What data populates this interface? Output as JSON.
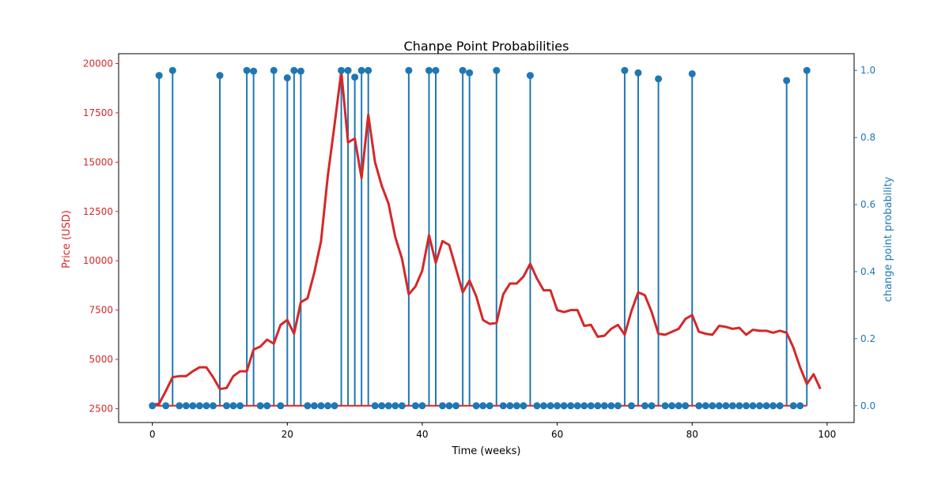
{
  "chart_data": {
    "type": "line",
    "title": "Chanpe Point Probabilities",
    "xlabel": "Time (weeks)",
    "ylabel_left": "Price (USD)",
    "ylabel_right": "change point probability",
    "xlim": [
      -5,
      104
    ],
    "ylim_left": [
      1800,
      20500
    ],
    "ylim_right": [
      -0.05,
      1.05
    ],
    "x_ticks": [
      0,
      20,
      40,
      60,
      80,
      100
    ],
    "y_ticks_left": [
      2500,
      5000,
      7500,
      10000,
      12500,
      15000,
      17500,
      20000
    ],
    "y_ticks_right": [
      0.0,
      0.2,
      0.4,
      0.6,
      0.8,
      1.0
    ],
    "y_tick_decimals_right": 1,
    "grid": false,
    "colors": {
      "price": "#d62728",
      "probability": "#1f77b4",
      "axes": "#000000"
    },
    "series": [
      {
        "name": "",
        "kind": "line",
        "axis": "left",
        "x": [
          0,
          1,
          2,
          3,
          4,
          5,
          6,
          7,
          8,
          9,
          10,
          11,
          12,
          13,
          14,
          15,
          16,
          17,
          18,
          19,
          20,
          21,
          22,
          23,
          24,
          25,
          26,
          27,
          28,
          29,
          30,
          31,
          32,
          33,
          34,
          35,
          36,
          37,
          38,
          39,
          40,
          41,
          42,
          43,
          44,
          45,
          46,
          47,
          48,
          49,
          50,
          51,
          52,
          53,
          54,
          55,
          56,
          57,
          58,
          59,
          60,
          61,
          62,
          63,
          64,
          65,
          66,
          67,
          68,
          69,
          70,
          71,
          72,
          73,
          74,
          75,
          76,
          77,
          78,
          79,
          80,
          81,
          82,
          83,
          84,
          85,
          86,
          87,
          88,
          89,
          90,
          91,
          92,
          93,
          94,
          95,
          96,
          97,
          98,
          99
        ],
        "y": [
          2700,
          2750,
          3400,
          4100,
          4150,
          4150,
          4400,
          4600,
          4600,
          4100,
          3500,
          3550,
          4150,
          4400,
          4400,
          5500,
          5650,
          6000,
          5800,
          6750,
          7000,
          6300,
          7900,
          8100,
          9400,
          11000,
          14300,
          16900,
          19600,
          16000,
          16200,
          14200,
          17400,
          15000,
          13800,
          12900,
          11200,
          10100,
          8300,
          8700,
          9500,
          11300,
          9900,
          11000,
          10800,
          9600,
          8400,
          9000,
          8200,
          7000,
          6800,
          6850,
          8300,
          8850,
          8850,
          9200,
          9850,
          9100,
          8500,
          8500,
          7500,
          7400,
          7500,
          7500,
          6700,
          6750,
          6150,
          6200,
          6550,
          6750,
          6250,
          7450,
          8400,
          8250,
          7400,
          6300,
          6250,
          6400,
          6550,
          7050,
          7250,
          6400,
          6300,
          6250,
          6700,
          6650,
          6550,
          6600,
          6250,
          6500,
          6450,
          6450,
          6350,
          6450,
          6350,
          5600,
          4600,
          3750,
          4250,
          3500
        ]
      },
      {
        "name": "",
        "kind": "stem",
        "axis": "right",
        "x": [
          0,
          1,
          2,
          3,
          4,
          5,
          6,
          7,
          8,
          9,
          10,
          11,
          12,
          13,
          14,
          15,
          16,
          17,
          18,
          19,
          20,
          21,
          22,
          23,
          24,
          25,
          26,
          27,
          28,
          29,
          30,
          31,
          32,
          33,
          34,
          35,
          36,
          37,
          38,
          39,
          40,
          41,
          42,
          43,
          44,
          45,
          46,
          47,
          48,
          49,
          50,
          51,
          52,
          53,
          54,
          55,
          56,
          57,
          58,
          59,
          60,
          61,
          62,
          63,
          64,
          65,
          66,
          67,
          68,
          69,
          70,
          71,
          72,
          73,
          74,
          75,
          76,
          77,
          78,
          79,
          80,
          81,
          82,
          83,
          84,
          85,
          86,
          87,
          88,
          89,
          90,
          91,
          92,
          93,
          94,
          95,
          96,
          97
        ],
        "y": [
          0,
          0.985,
          0,
          1.0,
          0,
          0,
          0,
          0,
          0,
          0,
          0.985,
          0,
          0,
          0,
          1.0,
          0.998,
          0,
          0,
          1.0,
          0,
          0.978,
          1.0,
          0.998,
          0,
          0,
          0,
          0,
          0,
          1.0,
          1.0,
          0.98,
          1.0,
          1.0,
          0,
          0,
          0,
          0,
          0,
          1.0,
          0,
          0,
          1.0,
          1.0,
          0,
          0,
          0,
          1.0,
          0.993,
          0,
          0,
          0,
          1.0,
          0,
          0,
          0,
          0,
          0.985,
          0,
          0,
          0,
          0,
          0,
          0,
          0,
          0,
          0,
          0,
          0,
          0,
          0,
          1.0,
          0,
          0.993,
          0,
          0,
          0.975,
          0,
          0,
          0,
          0,
          0.99,
          0,
          0,
          0,
          0,
          0,
          0,
          0,
          0,
          0,
          0,
          0,
          0,
          0,
          0.97,
          0,
          0,
          1.0
        ]
      }
    ]
  }
}
